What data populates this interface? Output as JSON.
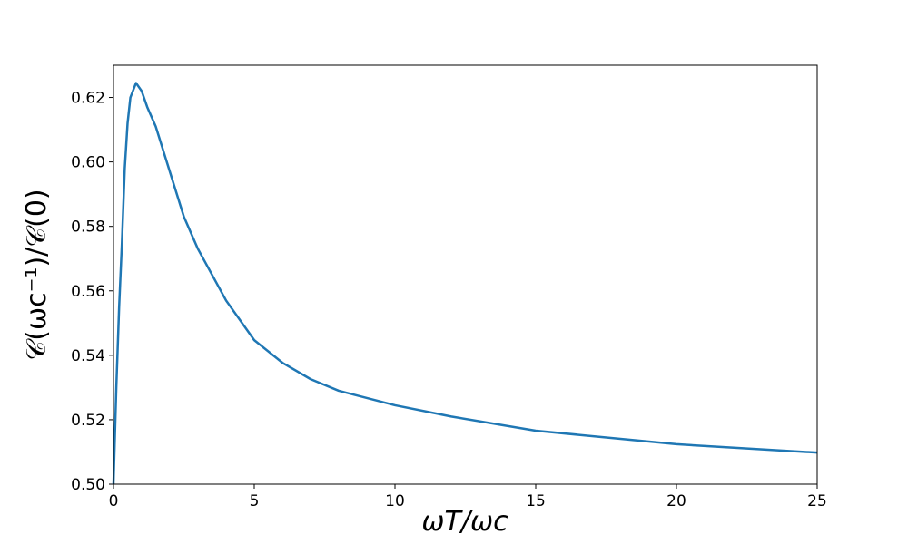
{
  "chart_data": {
    "type": "line",
    "xlabel": "ωT/ωc",
    "ylabel": "𝒞(ωc⁻¹)/𝒞(0)",
    "x": [
      0,
      0.1,
      0.2,
      0.3,
      0.4,
      0.5,
      0.6,
      0.8,
      1.0,
      1.2,
      1.5,
      2,
      2.5,
      3,
      4,
      5,
      6,
      7,
      8,
      10,
      12,
      15,
      20,
      25
    ],
    "series": [
      {
        "color": "#1f77b4",
        "values": [
          0.5,
          0.53,
          0.555,
          0.575,
          0.598,
          0.612,
          0.62,
          0.6245,
          0.622,
          0.617,
          0.611,
          0.597,
          0.583,
          0.573,
          0.557,
          0.5447,
          0.5377,
          0.5326,
          0.529,
          0.5245,
          0.521,
          0.5166,
          0.5124,
          0.5098
        ]
      }
    ],
    "xlim": [
      0,
      25
    ],
    "xticks": [
      0,
      5,
      10,
      15,
      20,
      25
    ],
    "ylim": [
      0.5,
      0.63
    ],
    "yticks": [
      {
        "value": 0.5,
        "label": "0.50"
      },
      {
        "value": 0.52,
        "label": "0.52"
      },
      {
        "value": 0.54,
        "label": "0.54"
      },
      {
        "value": 0.56,
        "label": "0.56"
      },
      {
        "value": 0.58,
        "label": "0.58"
      },
      {
        "value": 0.6,
        "label": "0.60"
      },
      {
        "value": 0.62,
        "label": "0.62"
      }
    ],
    "grid": false
  }
}
